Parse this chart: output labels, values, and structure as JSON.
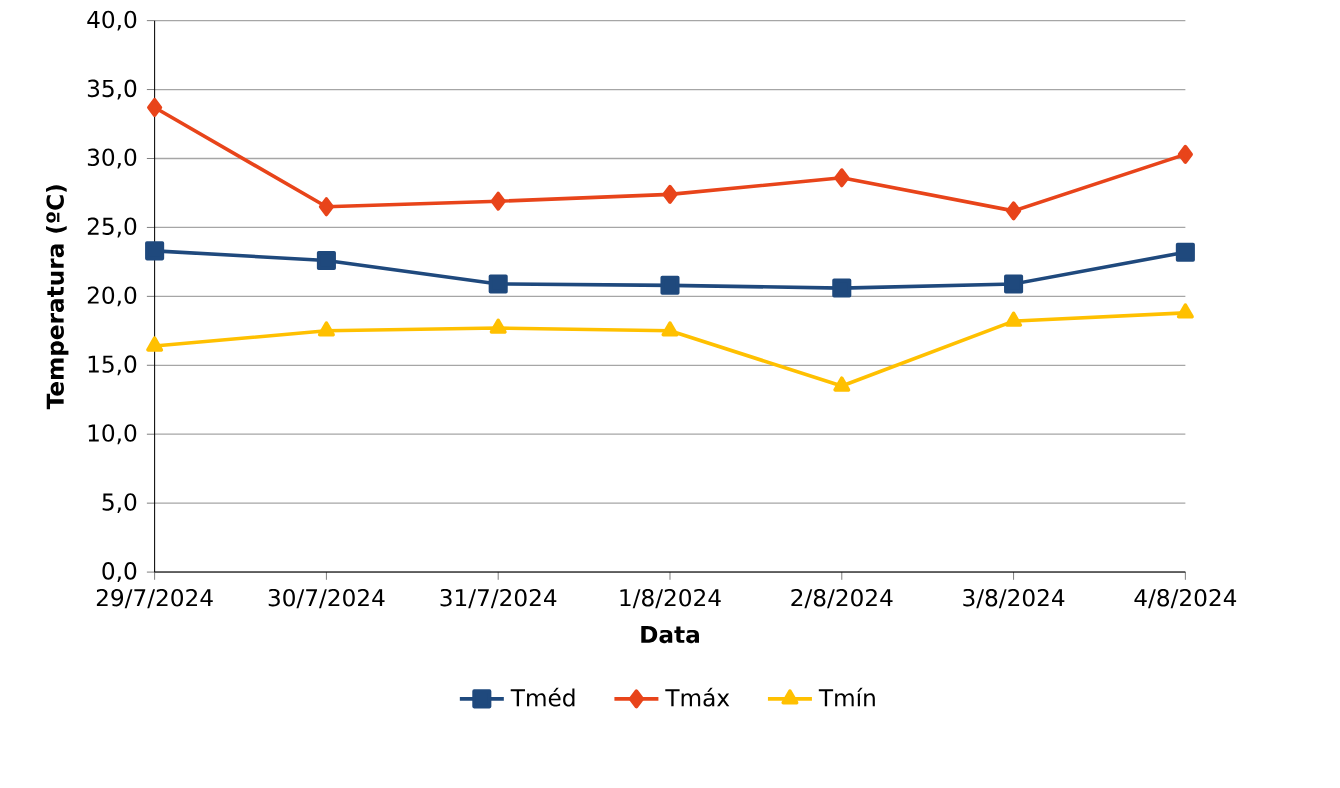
{
  "chart_data": {
    "type": "line",
    "xlabel": "Data",
    "ylabel": "Temperatura (ºC)",
    "categories": [
      "29/7/2024",
      "30/7/2024",
      "31/7/2024",
      "1/8/2024",
      "2/8/2024",
      "3/8/2024",
      "4/8/2024"
    ],
    "series": [
      {
        "name": "Tméd",
        "color": "#1f497d",
        "marker": "square",
        "values": [
          23.3,
          22.6,
          20.9,
          20.8,
          20.6,
          20.9,
          23.2
        ]
      },
      {
        "name": "Tmáx",
        "color": "#e8441a",
        "marker": "diamond",
        "values": [
          33.7,
          26.5,
          26.9,
          27.4,
          28.6,
          26.2,
          30.3
        ]
      },
      {
        "name": "Tmín",
        "color": "#ffc000",
        "marker": "triangle",
        "values": [
          16.4,
          17.5,
          17.7,
          17.5,
          13.5,
          18.2,
          18.8
        ]
      }
    ],
    "ylim": [
      0,
      40
    ],
    "yticks": [
      {
        "value": 0,
        "label": "0,0"
      },
      {
        "value": 5,
        "label": "5,0"
      },
      {
        "value": 10,
        "label": "10,0"
      },
      {
        "value": 15,
        "label": "15,0"
      },
      {
        "value": 20,
        "label": "20,0"
      },
      {
        "value": 25,
        "label": "25,0"
      },
      {
        "value": 30,
        "label": "30,0"
      },
      {
        "value": 35,
        "label": "35,0"
      },
      {
        "value": 40,
        "label": "40,0"
      }
    ],
    "grid": "y",
    "legend": "bottom",
    "line_style": "solid"
  }
}
